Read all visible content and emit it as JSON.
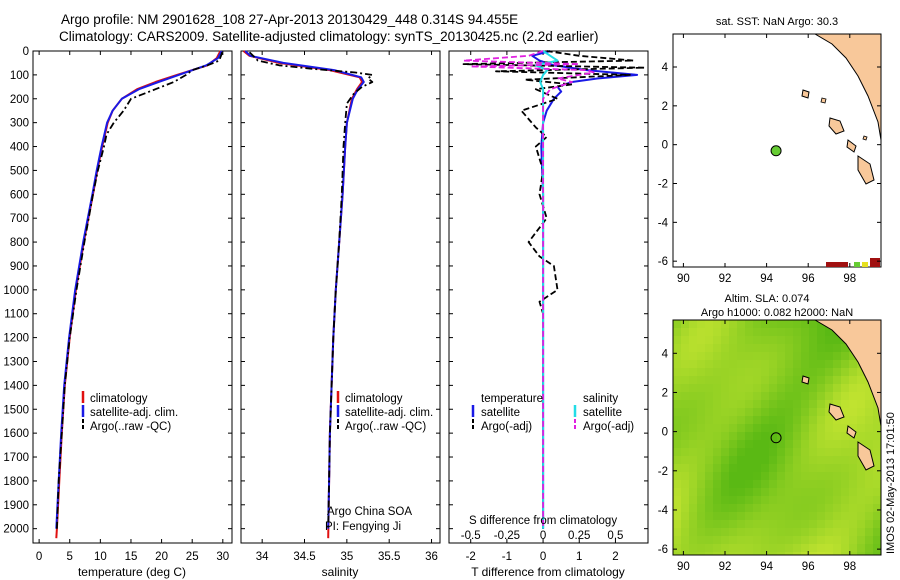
{
  "title_line1": "Argo profile: NM 2901628_108 27-Apr-2013 20130429_448 0.314S 94.455E",
  "title_line2": "Climatology: CARS2009. Satellite-adjusted climatology: synTS_20130425.nc (2.2d earlier)",
  "sst_title": "sat. SST: NaN Argo: 30.3",
  "altim_line1": "Altim. SLA: 0.074",
  "altim_line2": "Argo h1000: 0.082 h2000: NaN",
  "side_stamp": "IMOS 02-May-2013 17:01:50",
  "colors": {
    "climatology": "#e01010",
    "satellite": "#1a1ae6",
    "argo": "#000000",
    "salinity_sat": "#22dde6",
    "salinity_argo": "#e020e0",
    "land": "#f8c89a",
    "float_marker": "#66cc33"
  },
  "chart_data": [
    {
      "type": "line",
      "name": "temperature",
      "xlabel": "temperature (deg C)",
      "ylabel": "",
      "xlim": [
        -1,
        31.5
      ],
      "ylim": [
        2060,
        0
      ],
      "y_reversed": true,
      "xticks": [
        0,
        5,
        10,
        15,
        20,
        25,
        30
      ],
      "yticks": [
        0,
        100,
        200,
        300,
        400,
        500,
        600,
        700,
        800,
        900,
        1000,
        1100,
        1200,
        1300,
        1400,
        1500,
        1600,
        1700,
        1800,
        1900,
        2000
      ],
      "legend": [
        "climatology",
        "satellite-adj. clim.",
        "Argo(..raw -QC)"
      ],
      "legend_position": "bottom-right",
      "series": [
        {
          "name": "climatology",
          "style": "solid",
          "depth": [
            0,
            30,
            60,
            100,
            130,
            160,
            200,
            250,
            300,
            400,
            500,
            600,
            800,
            1000,
            1200,
            1400,
            1600,
            1800,
            2000,
            2040
          ],
          "values": [
            29.6,
            29.0,
            27.5,
            22.5,
            19.0,
            16.0,
            13.5,
            12.0,
            11.2,
            10.3,
            9.5,
            8.8,
            7.3,
            6.0,
            5.0,
            4.2,
            3.7,
            3.3,
            2.9,
            2.8
          ]
        },
        {
          "name": "satellite-adj. clim.",
          "style": "solid",
          "depth": [
            0,
            30,
            60,
            100,
            130,
            160,
            200,
            250,
            300,
            400,
            500,
            600,
            800,
            1000,
            1200,
            1400,
            1600,
            1800,
            2000
          ],
          "values": [
            29.8,
            29.2,
            27.3,
            22.8,
            19.5,
            16.3,
            13.5,
            12.0,
            11.1,
            10.2,
            9.4,
            8.7,
            7.2,
            5.9,
            4.9,
            4.1,
            3.6,
            3.2,
            2.8
          ]
        },
        {
          "name": "Argo(..raw -QC)",
          "style": "dashdot",
          "depth": [
            5,
            20,
            40,
            60,
            80,
            100,
            130,
            160,
            200,
            250,
            300,
            350,
            400,
            500,
            600,
            800,
            1000,
            1200,
            1400,
            1600,
            1800,
            2000
          ],
          "values": [
            29.9,
            29.7,
            29.4,
            27.5,
            25.0,
            24.0,
            22.0,
            19.0,
            15.0,
            13.8,
            12.2,
            11.0,
            10.6,
            9.6,
            8.8,
            7.4,
            6.1,
            5.0,
            4.2,
            3.7,
            3.2,
            2.9
          ]
        }
      ]
    },
    {
      "type": "line",
      "name": "salinity",
      "xlabel": "salinity",
      "xlim": [
        33.75,
        36.1
      ],
      "ylim": [
        2060,
        0
      ],
      "y_reversed": true,
      "xticks": [
        34,
        34.5,
        35,
        35.5,
        36
      ],
      "legend": [
        "climatology",
        "satellite-adj. clim.",
        "Argo(..raw -QC)"
      ],
      "legend_position": "bottom-right",
      "annotation": [
        "Argo China SOA",
        "PI: Fengying Ji"
      ],
      "series": [
        {
          "name": "climatology",
          "style": "solid",
          "depth": [
            0,
            20,
            50,
            80,
            110,
            130,
            160,
            200,
            300,
            400,
            600,
            800,
            1000,
            1200,
            1400,
            1600,
            1800,
            2040
          ],
          "values": [
            33.78,
            33.85,
            34.2,
            34.8,
            35.15,
            35.18,
            35.12,
            35.06,
            35.0,
            34.98,
            34.95,
            34.91,
            34.87,
            34.84,
            34.82,
            34.8,
            34.79,
            34.78
          ]
        },
        {
          "name": "satellite-adj. clim.",
          "style": "solid",
          "depth": [
            0,
            20,
            50,
            80,
            110,
            130,
            160,
            200,
            300,
            400,
            600,
            800,
            1000,
            1200,
            1400,
            1600,
            1800,
            2000
          ],
          "values": [
            33.8,
            33.86,
            34.25,
            34.85,
            35.17,
            35.2,
            35.13,
            35.07,
            35.0,
            34.98,
            34.95,
            34.91,
            34.87,
            34.84,
            34.82,
            34.8,
            34.79,
            34.78
          ]
        },
        {
          "name": "Argo(..raw -QC)",
          "style": "dashdot",
          "depth": [
            5,
            40,
            60,
            75,
            90,
            100,
            115,
            130,
            150,
            180,
            220,
            300,
            400,
            600,
            800,
            1000,
            1200,
            1400,
            1600,
            1800,
            2000
          ],
          "values": [
            33.85,
            33.95,
            34.2,
            34.6,
            35.1,
            35.3,
            35.25,
            35.3,
            35.18,
            35.08,
            35.0,
            34.98,
            34.96,
            34.94,
            34.91,
            34.87,
            34.84,
            34.82,
            34.8,
            34.79,
            34.78
          ]
        }
      ]
    },
    {
      "type": "line",
      "name": "difference from climatology",
      "xlabel": "T difference from climatology",
      "xlabel_top": "S difference from climatology",
      "xlim": [
        -2.6,
        2.9
      ],
      "ylim": [
        2060,
        0
      ],
      "y_reversed": true,
      "xticks": [
        -2,
        -1,
        0,
        1,
        2
      ],
      "xticks_salinity": [
        "-0.5",
        "-0.25",
        "0",
        "0.25",
        "0.5"
      ],
      "legend_headers": [
        "temperature",
        "salinity"
      ],
      "legend": [
        "satellite",
        "Argo(-adj)",
        "satellite",
        "Argo(-adj)"
      ],
      "legend_position": "bottom",
      "series": [
        {
          "name": "temperature satellite",
          "style": "solid",
          "depth": [
            0,
            20,
            40,
            60,
            80,
            100,
            115,
            130,
            150,
            170,
            200,
            250,
            300,
            400,
            600,
            800,
            1000,
            1200,
            1500,
            2000
          ],
          "values": [
            0.2,
            -0.3,
            -0.1,
            0.3,
            1.2,
            2.6,
            1.5,
            0.8,
            0.4,
            0.5,
            0.3,
            0.1,
            0.0,
            -0.05,
            0.0,
            0.0,
            0.0,
            0.0,
            0.0,
            0.0
          ]
        },
        {
          "name": "temperature Argo(-adj)",
          "style": "dashed",
          "depth": [
            0,
            20,
            40,
            55,
            70,
            85,
            100,
            120,
            140,
            160,
            200,
            250,
            320,
            360,
            400,
            500,
            600,
            700,
            800,
            860,
            900,
            1000,
            1050,
            1100,
            1200,
            1400,
            1600,
            2000
          ],
          "values": [
            0.1,
            1.0,
            2.5,
            -2.2,
            2.8,
            -1.3,
            2.4,
            -0.5,
            0.8,
            -0.2,
            0.4,
            -0.6,
            -0.2,
            0.1,
            -0.2,
            0.0,
            -0.1,
            0.1,
            -0.4,
            -0.1,
            0.3,
            0.4,
            -0.1,
            0.0,
            0.0,
            0.0,
            0.0,
            0.0
          ]
        },
        {
          "name": "salinity satellite",
          "style": "solid",
          "depth": [
            0,
            20,
            40,
            60,
            80,
            100,
            130,
            160,
            200,
            300,
            500,
            800,
            1200,
            2000
          ],
          "values": [
            0.0,
            0.05,
            0.1,
            -0.05,
            0.03,
            0.0,
            -0.02,
            0.0,
            0.0,
            0.0,
            0.0,
            0.0,
            0.0,
            0.0
          ]
        },
        {
          "name": "salinity Argo(-adj)",
          "style": "dashed",
          "depth": [
            0,
            20,
            40,
            55,
            65,
            80,
            90,
            100,
            115,
            130,
            160,
            200,
            300,
            500,
            800,
            1200,
            2000
          ],
          "values": [
            0.0,
            -0.1,
            -0.55,
            0.25,
            -0.5,
            0.3,
            0.35,
            0.25,
            0.1,
            0.2,
            0.05,
            0.0,
            0.0,
            0.0,
            0.0,
            0.0,
            0.0
          ]
        }
      ]
    },
    {
      "type": "map",
      "name": "sat. SST",
      "title": "sat. SST: NaN Argo: 30.3",
      "xlim": [
        89.5,
        99.5
      ],
      "ylim": [
        -6.3,
        5.7
      ],
      "xticks": [
        90,
        92,
        94,
        96,
        98
      ],
      "yticks": [
        -6,
        -4,
        -2,
        0,
        2,
        4
      ],
      "float": {
        "lon": 94.455,
        "lat": -0.314
      }
    },
    {
      "type": "heatmap",
      "name": "Altim. SLA",
      "title": "Altim. SLA: 0.074",
      "subtitle": "Argo h1000: 0.082 h2000: NaN",
      "xlim": [
        89.5,
        99.5
      ],
      "ylim": [
        -6.3,
        5.7
      ],
      "xticks": [
        90,
        92,
        94,
        96,
        98
      ],
      "yticks": [
        -6,
        -4,
        -2,
        0,
        2,
        4
      ],
      "float": {
        "lon": 94.455,
        "lat": -0.314
      }
    }
  ]
}
